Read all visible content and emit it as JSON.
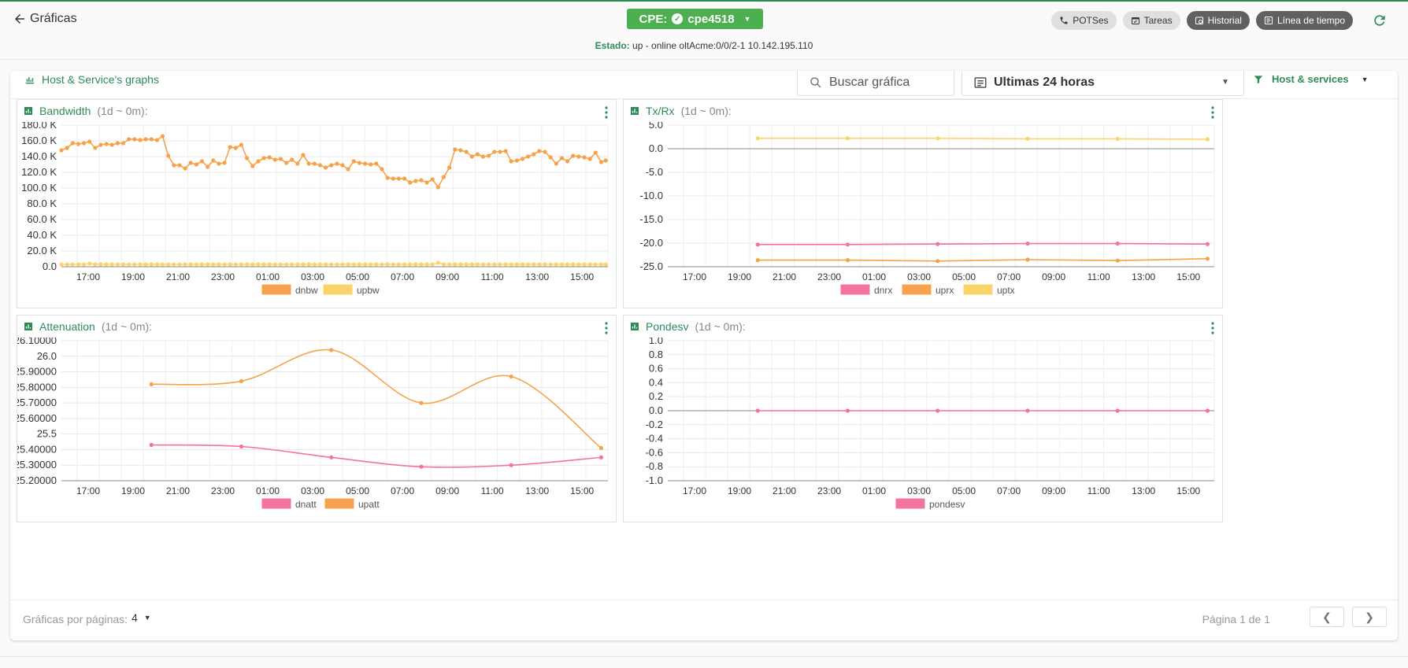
{
  "header": {
    "back_label": "Gráficas",
    "cpe_label": "CPE:",
    "cpe_name": "cpe4518",
    "estado_label": "Estado:",
    "estado_value": "up - online oltAcme:0/0/2-1 10.142.195.110",
    "chips": [
      {
        "label": "POTSes",
        "icon": "phone-icon"
      },
      {
        "label": "Tareas",
        "icon": "calendar-icon"
      },
      {
        "label": "Historial",
        "icon": "history-icon"
      },
      {
        "label": "Línea de tiempo",
        "icon": "timeline-icon"
      }
    ]
  },
  "toolbar": {
    "title": "Host & Service's graphs",
    "search_placeholder": "Buscar gráfica",
    "range_value": "Ultimas 24 horas",
    "filter_label": "Host & services"
  },
  "footer": {
    "per_page_label": "Gráficas por páginas:",
    "per_page_value": "4",
    "page_info": "Página 1 de 1"
  },
  "colors": {
    "accent": "#2e8b57",
    "cpe_green": "#4caf50",
    "orange": "#f6a24a",
    "yellow": "#fdd36b",
    "pink": "#f3739b"
  },
  "chart_data": [
    {
      "type": "line",
      "title": "Bandwidth",
      "period": "(1d ~ 0m):",
      "xticks": [
        "17:00",
        "19:00",
        "21:00",
        "23:00",
        "01:00",
        "03:00",
        "05:00",
        "07:00",
        "09:00",
        "11:00",
        "13:00",
        "15:00"
      ],
      "yticks": [
        "180.0 K",
        "160.0 K",
        "140.0 K",
        "120.0 K",
        "100.0 K",
        "80.0 K",
        "60.0 K",
        "40.0 K",
        "20.0 K",
        "0.0"
      ],
      "ylim": [
        0,
        180
      ],
      "xlim": [
        16.0,
        40.3
      ],
      "smooth": false,
      "series": [
        {
          "name": "dnbw",
          "color": "#f6a24a",
          "x": [
            16.0,
            16.25,
            16.5,
            16.75,
            17.0,
            17.25,
            17.5,
            17.75,
            18.0,
            18.25,
            18.5,
            18.75,
            19.0,
            19.25,
            19.5,
            19.75,
            20.0,
            20.25,
            20.5,
            20.75,
            21.0,
            21.25,
            21.5,
            21.75,
            22.0,
            22.25,
            22.5,
            22.75,
            23.0,
            23.25,
            23.5,
            23.75,
            24.0,
            24.25,
            24.5,
            24.75,
            25.0,
            25.25,
            25.5,
            25.75,
            26.0,
            26.25,
            26.5,
            26.75,
            27.0,
            27.25,
            27.5,
            27.75,
            28.0,
            28.25,
            28.5,
            28.75,
            29.0,
            29.25,
            29.5,
            29.75,
            30.0,
            30.25,
            30.5,
            30.75,
            31.0,
            31.25,
            31.5,
            31.75,
            32.0,
            32.25,
            32.5,
            32.75,
            33.0,
            33.25,
            33.5,
            33.75,
            34.0,
            34.25,
            34.5,
            34.75,
            35.0,
            35.25,
            35.5,
            35.75,
            36.0,
            36.25,
            36.5,
            36.75,
            37.0,
            37.25,
            37.5,
            37.75,
            38.0,
            38.25,
            38.5,
            38.75,
            39.0,
            39.25,
            39.5,
            39.75,
            40.0,
            40.2
          ],
          "y": [
            148,
            151,
            157,
            156,
            157,
            159,
            151,
            155,
            156,
            155,
            157,
            157,
            162,
            162,
            161,
            162,
            162,
            161,
            166,
            141,
            129,
            129,
            125,
            132,
            130,
            134,
            127,
            135,
            131,
            132,
            152,
            151,
            155,
            138,
            128,
            134,
            138,
            139,
            136,
            137,
            132,
            136,
            131,
            142,
            131,
            131,
            129,
            126,
            129,
            131,
            129,
            124,
            134,
            132,
            131,
            130,
            131,
            124,
            113,
            112,
            112,
            112,
            107,
            109,
            110,
            107,
            111,
            101,
            114,
            126,
            149,
            148,
            146,
            140,
            143,
            140,
            141,
            146,
            146,
            147,
            134,
            135,
            137,
            140,
            143,
            147,
            146,
            139,
            131,
            138,
            134,
            141,
            140,
            139,
            137,
            145,
            133,
            135
          ],
          "dots": true
        },
        {
          "name": "upbw",
          "color": "#fdd36b",
          "x": [
            16.0,
            16.25,
            16.5,
            16.75,
            17.0,
            17.25,
            17.5,
            17.75,
            18.0,
            18.25,
            18.5,
            18.75,
            19.0,
            19.25,
            19.5,
            19.75,
            20.0,
            20.25,
            20.5,
            20.75,
            21.0,
            21.25,
            21.5,
            21.75,
            22.0,
            22.25,
            22.5,
            22.75,
            23.0,
            23.25,
            23.5,
            23.75,
            24.0,
            24.25,
            24.5,
            24.75,
            25.0,
            25.25,
            25.5,
            25.75,
            26.0,
            26.25,
            26.5,
            26.75,
            27.0,
            27.25,
            27.5,
            27.75,
            28.0,
            28.25,
            28.5,
            28.75,
            29.0,
            29.25,
            29.5,
            29.75,
            30.0,
            30.25,
            30.5,
            30.75,
            31.0,
            31.25,
            31.5,
            31.75,
            32.0,
            32.25,
            32.5,
            32.75,
            33.0,
            33.25,
            33.5,
            33.75,
            34.0,
            34.25,
            34.5,
            34.75,
            35.0,
            35.25,
            35.5,
            35.75,
            36.0,
            36.25,
            36.5,
            36.75,
            37.0,
            37.25,
            37.5,
            37.75,
            38.0,
            38.25,
            38.5,
            38.75,
            39.0,
            39.25,
            39.5,
            39.75,
            40.0,
            40.2
          ],
          "y": [
            3,
            3,
            3,
            3,
            3,
            4,
            3,
            3,
            3,
            3,
            3,
            3,
            3,
            3,
            3,
            3,
            3,
            3,
            3,
            3,
            3,
            3,
            3,
            3,
            3,
            3,
            3,
            3,
            3,
            3,
            3,
            3,
            3,
            3,
            3,
            3,
            3,
            3,
            3,
            3,
            3,
            3,
            3,
            3,
            3,
            3,
            3,
            3,
            3,
            3,
            3,
            3,
            3,
            3,
            3,
            3,
            3,
            3,
            3,
            3,
            3,
            3,
            3,
            3,
            3,
            3,
            3,
            5,
            3,
            3,
            3,
            3,
            3,
            3,
            3,
            3,
            3,
            3,
            3,
            3,
            3,
            3,
            3,
            3,
            3,
            3,
            3,
            3,
            3,
            3,
            3,
            3,
            3,
            3,
            3,
            3,
            3,
            3
          ],
          "dots": true
        }
      ]
    },
    {
      "type": "line",
      "title": "Tx/Rx",
      "period": "(1d ~ 0m):",
      "xticks": [
        "17:00",
        "19:00",
        "21:00",
        "23:00",
        "01:00",
        "03:00",
        "05:00",
        "07:00",
        "09:00",
        "11:00",
        "13:00",
        "15:00"
      ],
      "yticks": [
        "5.0",
        "0.0",
        "-5.0",
        "-10.0",
        "-15.0",
        "-20.0",
        "-25.0"
      ],
      "ylim": [
        -25,
        5
      ],
      "xlim": [
        16.0,
        40.3
      ],
      "zero_line": true,
      "smooth": false,
      "series": [
        {
          "name": "dnrx",
          "color": "#f3739b",
          "x": [
            20,
            24,
            28,
            32,
            36,
            40.0
          ],
          "y": [
            -20.3,
            -20.3,
            -20.2,
            -20.1,
            -20.1,
            -20.2
          ],
          "dots": true
        },
        {
          "name": "uprx",
          "color": "#f6a24a",
          "x": [
            20,
            24,
            28,
            32,
            36,
            40.0
          ],
          "y": [
            -23.6,
            -23.6,
            -23.8,
            -23.5,
            -23.7,
            -23.3
          ],
          "dots": true
        },
        {
          "name": "uptx",
          "color": "#fdd36b",
          "x": [
            20,
            24,
            28,
            32,
            36,
            40.0
          ],
          "y": [
            2.2,
            2.2,
            2.2,
            2.1,
            2.1,
            2.0
          ],
          "dots": true
        }
      ]
    },
    {
      "type": "line",
      "title": "Attenuation",
      "period": "(1d ~ 0m):",
      "xticks": [
        "17:00",
        "19:00",
        "21:00",
        "23:00",
        "01:00",
        "03:00",
        "05:00",
        "07:00",
        "09:00",
        "11:00",
        "13:00",
        "15:00"
      ],
      "yticks": [
        "26.10000",
        "26.0",
        "25.90000",
        "25.80000",
        "25.70000",
        "25.60000",
        "25.5",
        "25.40000",
        "25.30000",
        "25.20000"
      ],
      "ylim": [
        25.2,
        26.1
      ],
      "xlim": [
        16.0,
        40.3
      ],
      "smooth": true,
      "series": [
        {
          "name": "dnatt",
          "color": "#f3739b",
          "x": [
            20,
            24,
            28,
            32,
            36,
            40.0
          ],
          "y": [
            25.43,
            25.42,
            25.35,
            25.29,
            25.3,
            25.35
          ],
          "dots": true
        },
        {
          "name": "upatt",
          "color": "#f6a24a",
          "x": [
            20,
            24,
            28,
            32,
            36,
            40.0
          ],
          "y": [
            25.82,
            25.84,
            26.04,
            25.7,
            25.87,
            25.41
          ],
          "dots": true
        }
      ]
    },
    {
      "type": "line",
      "title": "Pondesv",
      "period": "(1d ~ 0m):",
      "xticks": [
        "17:00",
        "19:00",
        "21:00",
        "23:00",
        "01:00",
        "03:00",
        "05:00",
        "07:00",
        "09:00",
        "11:00",
        "13:00",
        "15:00"
      ],
      "yticks": [
        "1.0",
        "0.8",
        "0.6",
        "0.4",
        "0.2",
        "0.0",
        "-0.2",
        "-0.4",
        "-0.6",
        "-0.8",
        "-1.0"
      ],
      "ylim": [
        -1,
        1
      ],
      "xlim": [
        16.0,
        40.3
      ],
      "zero_line": true,
      "smooth": false,
      "series": [
        {
          "name": "pondesv",
          "color": "#f3739b",
          "x": [
            20,
            24,
            28,
            32,
            36,
            40.0
          ],
          "y": [
            0,
            0,
            0,
            0,
            0,
            0
          ],
          "dots": true
        }
      ]
    }
  ]
}
